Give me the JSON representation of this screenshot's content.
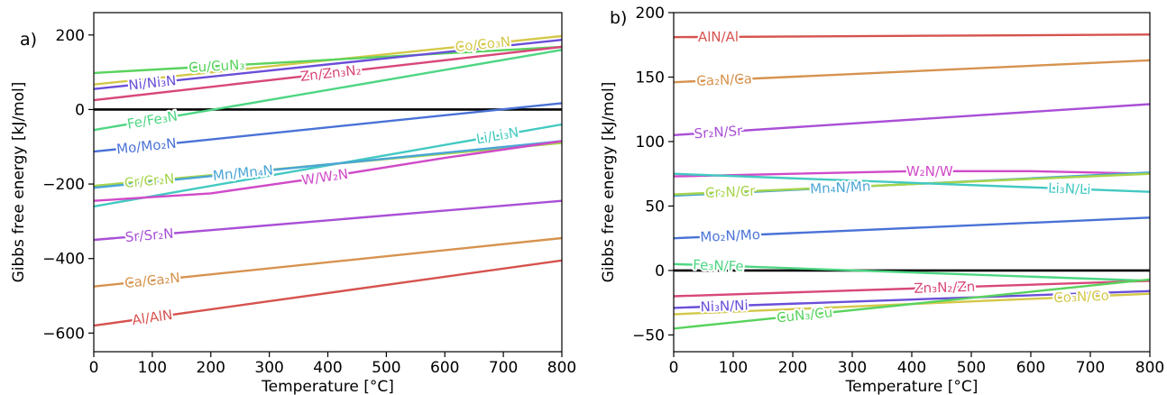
{
  "chart_data": [
    {
      "type": "line",
      "panel_label": "a)",
      "xlabel": "Temperature [°C]",
      "ylabel": "Gibbs free energy [kJ/mol]",
      "xlim": [
        0,
        800
      ],
      "ylim": [
        -650,
        260
      ],
      "xticks": [
        0,
        100,
        200,
        300,
        400,
        500,
        600,
        700,
        800
      ],
      "yticks": [
        -600,
        -400,
        -200,
        0,
        200
      ],
      "reference_line": 0,
      "series": [
        {
          "name": "Co/Co₃N",
          "color": "#d4c84a",
          "x": [
            0,
            800
          ],
          "y": [
            67,
            197
          ],
          "label_x": 665
        },
        {
          "name": "Cu/CuN₃",
          "color": "#59d35e",
          "x": [
            0,
            800
          ],
          "y": [
            98,
            168
          ],
          "label_x": 210
        },
        {
          "name": "Ni/Ni₃N",
          "color": "#6a4fd8",
          "x": [
            0,
            800
          ],
          "y": [
            55,
            187
          ],
          "label_x": 100
        },
        {
          "name": "Zn/Zn₃N₂",
          "color": "#d8487a",
          "x": [
            0,
            800
          ],
          "y": [
            25,
            168
          ],
          "label_x": 405
        },
        {
          "name": "Fe/Fe₃N",
          "color": "#4ed683",
          "x": [
            0,
            800
          ],
          "y": [
            -55,
            160
          ],
          "label_x": 100
        },
        {
          "name": "Mo/Mo₂N",
          "color": "#4a72d6",
          "x": [
            0,
            800
          ],
          "y": [
            -113,
            17
          ],
          "label_x": 90
        },
        {
          "name": "Li/Li₃N",
          "color": "#43c9c2",
          "x": [
            0,
            800
          ],
          "y": [
            -260,
            -40
          ],
          "label_x": 690
        },
        {
          "name": "Cr/Cr₂N",
          "color": "#a6d44a",
          "x": [
            0,
            800
          ],
          "y": [
            -205,
            -90
          ],
          "label_x": 95
        },
        {
          "name": "Mn/Mn₄N",
          "color": "#4aa6d6",
          "x": [
            0,
            800
          ],
          "y": [
            -210,
            -85
          ],
          "label_x": 255
        },
        {
          "name": "W/W₂N",
          "color": "#d04ac8",
          "x": [
            0,
            200,
            400,
            600,
            800
          ],
          "y": [
            -245,
            -225,
            -180,
            -130,
            -85
          ],
          "label_x": 395
        },
        {
          "name": "Sr/Sr₂N",
          "color": "#a94fd6",
          "x": [
            0,
            800
          ],
          "y": [
            -350,
            -245
          ],
          "label_x": 95
        },
        {
          "name": "Ca/Ca₂N",
          "color": "#d6934f",
          "x": [
            0,
            800
          ],
          "y": [
            -475,
            -345
          ],
          "label_x": 100
        },
        {
          "name": "Al/AlN",
          "color": "#d6534f",
          "x": [
            0,
            800
          ],
          "y": [
            -580,
            -405
          ],
          "label_x": 100
        }
      ]
    },
    {
      "type": "line",
      "panel_label": "b)",
      "xlabel": "Temperature [°C]",
      "ylabel": "Gibbs free energy [kJ/mol]",
      "xlim": [
        0,
        800
      ],
      "ylim": [
        -63,
        200
      ],
      "xticks": [
        0,
        100,
        200,
        300,
        400,
        500,
        600,
        700,
        800
      ],
      "yticks": [
        -50,
        0,
        50,
        100,
        150,
        200
      ],
      "reference_line": 0,
      "series": [
        {
          "name": "AlN/Al",
          "color": "#d6534f",
          "x": [
            0,
            800
          ],
          "y": [
            181,
            183
          ],
          "label_x": 75
        },
        {
          "name": "Ca₂N/Ca",
          "color": "#d6934f",
          "x": [
            0,
            800
          ],
          "y": [
            146,
            163
          ],
          "label_x": 85
        },
        {
          "name": "Sr₂N/Sr",
          "color": "#a94fd6",
          "x": [
            0,
            800
          ],
          "y": [
            105,
            129
          ],
          "label_x": 75
        },
        {
          "name": "W₂N/W",
          "color": "#d04ac8",
          "x": [
            0,
            200,
            400,
            600,
            800
          ],
          "y": [
            73,
            75,
            77,
            77,
            75
          ],
          "label_x": 430
        },
        {
          "name": "Mn₄N/Mn",
          "color": "#4aa6d6",
          "x": [
            0,
            800
          ],
          "y": [
            58,
            76
          ],
          "label_x": 280
        },
        {
          "name": "Cr₂N/Cr",
          "color": "#a6d44a",
          "x": [
            0,
            800
          ],
          "y": [
            59,
            75
          ],
          "label_x": 95
        },
        {
          "name": "Li₃N/Li",
          "color": "#43c9c2",
          "x": [
            0,
            800
          ],
          "y": [
            75,
            61
          ],
          "label_x": 665
        },
        {
          "name": "Mo₂N/Mo",
          "color": "#4a72d6",
          "x": [
            0,
            800
          ],
          "y": [
            25,
            41
          ],
          "label_x": 95
        },
        {
          "name": "Fe₃N/Fe",
          "color": "#4ed683",
          "x": [
            0,
            800
          ],
          "y": [
            5,
            -8
          ],
          "label_x": 75
        },
        {
          "name": "Zn₃N₂/Zn",
          "color": "#d8487a",
          "x": [
            0,
            800
          ],
          "y": [
            -20,
            -8
          ],
          "label_x": 455
        },
        {
          "name": "Ni₃N/Ni",
          "color": "#6a4fd8",
          "x": [
            0,
            800
          ],
          "y": [
            -29,
            -16
          ],
          "label_x": 85
        },
        {
          "name": "Co₃N/Co",
          "color": "#d4c84a",
          "x": [
            0,
            800
          ],
          "y": [
            -34,
            -18
          ],
          "label_x": 685
        },
        {
          "name": "CuN₃/Cu",
          "color": "#59d35e",
          "x": [
            0,
            800
          ],
          "y": [
            -45,
            -7
          ],
          "label_x": 220
        }
      ]
    }
  ]
}
